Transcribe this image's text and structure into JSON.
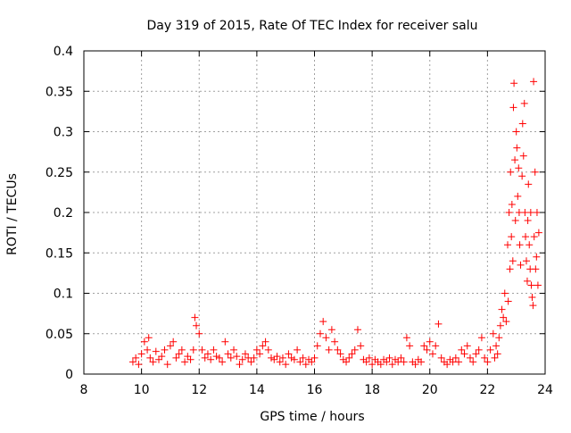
{
  "chart_data": {
    "type": "scatter",
    "title": "Day 319 of 2015, Rate Of TEC Index for receiver salu",
    "xlabel": "GPS time / hours",
    "ylabel": "ROTI / TECUs",
    "xlim": [
      8,
      24
    ],
    "ylim": [
      0,
      0.4
    ],
    "x_ticks": [
      8,
      10,
      12,
      14,
      16,
      18,
      20,
      22,
      24
    ],
    "y_ticks": [
      0,
      0.05,
      0.1,
      0.15,
      0.2,
      0.25,
      0.3,
      0.35,
      0.4
    ],
    "x_tick_labels": [
      "8",
      "10",
      "12",
      "14",
      "16",
      "18",
      "20",
      "22",
      "24"
    ],
    "y_tick_labels": [
      "0",
      "0.05",
      "0.1",
      "0.15",
      "0.2",
      "0.25",
      "0.3",
      "0.35",
      "0.4"
    ],
    "grid": true,
    "marker": "+",
    "color": "#ff0000",
    "series": [
      {
        "name": "ROTI",
        "points": [
          [
            9.7,
            0.015
          ],
          [
            9.8,
            0.02
          ],
          [
            9.9,
            0.012
          ],
          [
            10.0,
            0.025
          ],
          [
            10.1,
            0.04
          ],
          [
            10.2,
            0.03
          ],
          [
            10.25,
            0.045
          ],
          [
            10.3,
            0.02
          ],
          [
            10.4,
            0.015
          ],
          [
            10.5,
            0.028
          ],
          [
            10.6,
            0.018
          ],
          [
            10.7,
            0.022
          ],
          [
            10.8,
            0.03
          ],
          [
            10.9,
            0.012
          ],
          [
            11.0,
            0.035
          ],
          [
            11.1,
            0.04
          ],
          [
            11.2,
            0.02
          ],
          [
            11.3,
            0.025
          ],
          [
            11.4,
            0.03
          ],
          [
            11.5,
            0.015
          ],
          [
            11.6,
            0.022
          ],
          [
            11.7,
            0.018
          ],
          [
            11.8,
            0.03
          ],
          [
            11.85,
            0.07
          ],
          [
            11.9,
            0.06
          ],
          [
            12.0,
            0.05
          ],
          [
            12.1,
            0.03
          ],
          [
            12.2,
            0.02
          ],
          [
            12.3,
            0.025
          ],
          [
            12.4,
            0.018
          ],
          [
            12.5,
            0.03
          ],
          [
            12.6,
            0.022
          ],
          [
            12.7,
            0.02
          ],
          [
            12.8,
            0.015
          ],
          [
            12.9,
            0.04
          ],
          [
            13.0,
            0.025
          ],
          [
            13.1,
            0.02
          ],
          [
            13.2,
            0.03
          ],
          [
            13.3,
            0.022
          ],
          [
            13.4,
            0.012
          ],
          [
            13.5,
            0.018
          ],
          [
            13.6,
            0.025
          ],
          [
            13.7,
            0.02
          ],
          [
            13.8,
            0.015
          ],
          [
            13.9,
            0.02
          ],
          [
            14.0,
            0.03
          ],
          [
            14.1,
            0.025
          ],
          [
            14.2,
            0.035
          ],
          [
            14.3,
            0.04
          ],
          [
            14.4,
            0.03
          ],
          [
            14.5,
            0.02
          ],
          [
            14.6,
            0.018
          ],
          [
            14.7,
            0.022
          ],
          [
            14.8,
            0.015
          ],
          [
            14.9,
            0.02
          ],
          [
            15.0,
            0.012
          ],
          [
            15.1,
            0.025
          ],
          [
            15.2,
            0.02
          ],
          [
            15.3,
            0.018
          ],
          [
            15.4,
            0.03
          ],
          [
            15.5,
            0.015
          ],
          [
            15.6,
            0.02
          ],
          [
            15.7,
            0.012
          ],
          [
            15.8,
            0.018
          ],
          [
            15.9,
            0.015
          ],
          [
            16.0,
            0.02
          ],
          [
            16.1,
            0.035
          ],
          [
            16.2,
            0.05
          ],
          [
            16.3,
            0.065
          ],
          [
            16.4,
            0.045
          ],
          [
            16.5,
            0.03
          ],
          [
            16.6,
            0.055
          ],
          [
            16.7,
            0.04
          ],
          [
            16.8,
            0.03
          ],
          [
            16.9,
            0.025
          ],
          [
            17.0,
            0.018
          ],
          [
            17.1,
            0.015
          ],
          [
            17.2,
            0.02
          ],
          [
            17.3,
            0.025
          ],
          [
            17.4,
            0.03
          ],
          [
            17.5,
            0.055
          ],
          [
            17.6,
            0.035
          ],
          [
            17.7,
            0.018
          ],
          [
            17.8,
            0.015
          ],
          [
            17.9,
            0.02
          ],
          [
            18.0,
            0.012
          ],
          [
            18.1,
            0.018
          ],
          [
            18.2,
            0.015
          ],
          [
            18.3,
            0.012
          ],
          [
            18.4,
            0.018
          ],
          [
            18.5,
            0.015
          ],
          [
            18.6,
            0.02
          ],
          [
            18.7,
            0.012
          ],
          [
            18.8,
            0.018
          ],
          [
            18.9,
            0.015
          ],
          [
            19.0,
            0.02
          ],
          [
            19.1,
            0.015
          ],
          [
            19.2,
            0.045
          ],
          [
            19.3,
            0.035
          ],
          [
            19.4,
            0.015
          ],
          [
            19.5,
            0.012
          ],
          [
            19.6,
            0.018
          ],
          [
            19.7,
            0.015
          ],
          [
            19.8,
            0.035
          ],
          [
            19.9,
            0.03
          ],
          [
            20.0,
            0.04
          ],
          [
            20.1,
            0.025
          ],
          [
            20.2,
            0.035
          ],
          [
            20.3,
            0.062
          ],
          [
            20.4,
            0.02
          ],
          [
            20.5,
            0.015
          ],
          [
            20.6,
            0.012
          ],
          [
            20.7,
            0.018
          ],
          [
            20.8,
            0.015
          ],
          [
            20.9,
            0.02
          ],
          [
            21.0,
            0.015
          ],
          [
            21.1,
            0.03
          ],
          [
            21.2,
            0.025
          ],
          [
            21.3,
            0.035
          ],
          [
            21.4,
            0.02
          ],
          [
            21.5,
            0.015
          ],
          [
            21.6,
            0.025
          ],
          [
            21.7,
            0.03
          ],
          [
            21.8,
            0.045
          ],
          [
            21.9,
            0.02
          ],
          [
            22.0,
            0.015
          ],
          [
            22.1,
            0.03
          ],
          [
            22.2,
            0.05
          ],
          [
            22.25,
            0.02
          ],
          [
            22.3,
            0.035
          ],
          [
            22.35,
            0.025
          ],
          [
            22.4,
            0.045
          ],
          [
            22.45,
            0.06
          ],
          [
            22.5,
            0.08
          ],
          [
            22.55,
            0.07
          ],
          [
            22.6,
            0.1
          ],
          [
            22.65,
            0.065
          ],
          [
            22.7,
            0.16
          ],
          [
            22.72,
            0.09
          ],
          [
            22.75,
            0.2
          ],
          [
            22.78,
            0.13
          ],
          [
            22.8,
            0.25
          ],
          [
            22.83,
            0.17
          ],
          [
            22.85,
            0.21
          ],
          [
            22.88,
            0.14
          ],
          [
            22.9,
            0.33
          ],
          [
            22.92,
            0.36
          ],
          [
            22.95,
            0.265
          ],
          [
            22.97,
            0.19
          ],
          [
            23.0,
            0.3
          ],
          [
            23.02,
            0.28
          ],
          [
            23.05,
            0.22
          ],
          [
            23.08,
            0.255
          ],
          [
            23.1,
            0.2
          ],
          [
            23.12,
            0.16
          ],
          [
            23.15,
            0.135
          ],
          [
            23.2,
            0.245
          ],
          [
            23.22,
            0.31
          ],
          [
            23.25,
            0.27
          ],
          [
            23.28,
            0.335
          ],
          [
            23.3,
            0.2
          ],
          [
            23.32,
            0.17
          ],
          [
            23.35,
            0.14
          ],
          [
            23.38,
            0.115
          ],
          [
            23.4,
            0.19
          ],
          [
            23.42,
            0.235
          ],
          [
            23.45,
            0.16
          ],
          [
            23.48,
            0.13
          ],
          [
            23.5,
            0.2
          ],
          [
            23.52,
            0.11
          ],
          [
            23.55,
            0.095
          ],
          [
            23.58,
            0.085
          ],
          [
            23.6,
            0.362
          ],
          [
            23.62,
            0.17
          ],
          [
            23.65,
            0.25
          ],
          [
            23.67,
            0.13
          ],
          [
            23.7,
            0.145
          ],
          [
            23.72,
            0.2
          ],
          [
            23.75,
            0.11
          ],
          [
            23.78,
            0.175
          ]
        ]
      }
    ]
  }
}
